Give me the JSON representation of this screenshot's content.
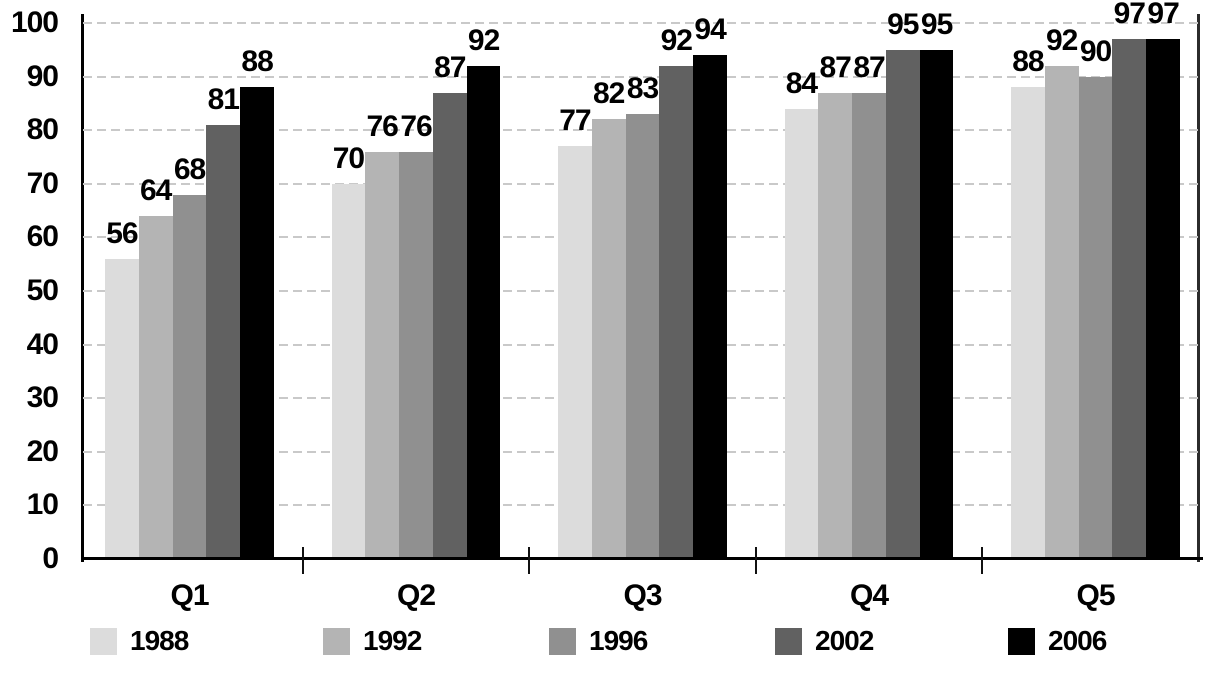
{
  "chart_data": {
    "type": "bar",
    "title": "",
    "xlabel": "",
    "ylabel": "",
    "categories": [
      "Q1",
      "Q2",
      "Q3",
      "Q4",
      "Q5"
    ],
    "series": [
      {
        "name": "1988",
        "color": "#dcdcdc",
        "values": [
          56,
          70,
          77,
          84,
          88
        ]
      },
      {
        "name": "1992",
        "color": "#b4b4b4",
        "values": [
          64,
          76,
          82,
          87,
          92
        ]
      },
      {
        "name": "1996",
        "color": "#909090",
        "values": [
          68,
          76,
          83,
          87,
          90
        ]
      },
      {
        "name": "2002",
        "color": "#616161",
        "values": [
          81,
          87,
          92,
          95,
          97
        ]
      },
      {
        "name": "2006",
        "color": "#000000",
        "values": [
          88,
          92,
          94,
          95,
          97
        ]
      }
    ],
    "ylim": [
      0,
      100
    ],
    "yticks": [
      0,
      10,
      20,
      30,
      40,
      50,
      60,
      70,
      80,
      90,
      100
    ],
    "grid": "horizontal-dashed",
    "gridline_color": "#c9c9c9",
    "axis_color": "#000000",
    "text_color": "#000000",
    "background": "#ffffff",
    "value_labels": true,
    "legend_position": "bottom"
  }
}
